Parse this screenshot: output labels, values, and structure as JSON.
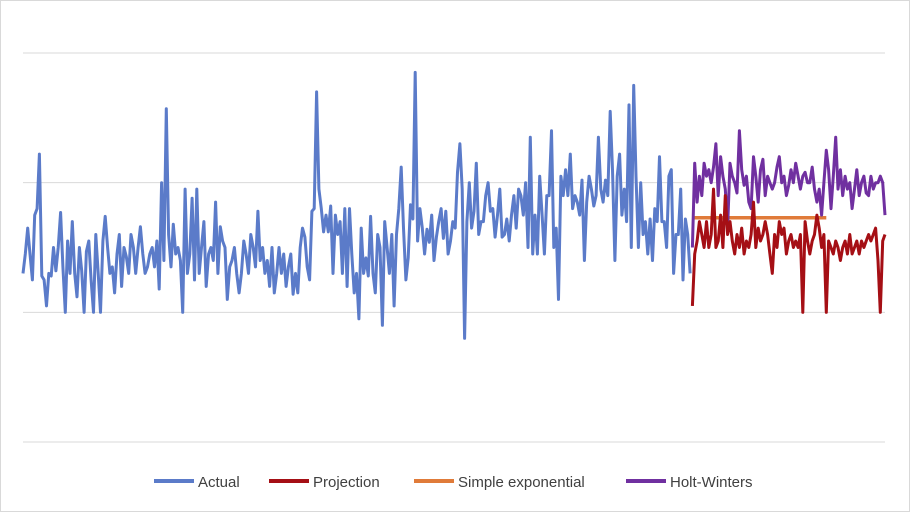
{
  "chart_data": {
    "type": "line",
    "title": "",
    "xlabel": "",
    "ylabel": "",
    "ylim": [
      -1,
      2
    ],
    "grid": true,
    "legend_position": "bottom",
    "series": [
      {
        "name": "Actual",
        "color": "#5b7bc9",
        "x_start": 0,
        "values": [
          0.3,
          0.45,
          0.65,
          0.45,
          0.25,
          0.75,
          0.8,
          1.22,
          0.28,
          0.25,
          0.05,
          0.3,
          0.28,
          0.5,
          0.32,
          0.5,
          0.77,
          0.35,
          0.0,
          0.55,
          0.3,
          0.7,
          0.3,
          0.12,
          0.5,
          0.32,
          0.0,
          0.47,
          0.55,
          0.25,
          0.0,
          0.6,
          0.3,
          0.0,
          0.55,
          0.74,
          0.5,
          0.3,
          0.35,
          0.15,
          0.45,
          0.6,
          0.2,
          0.5,
          0.43,
          0.3,
          0.6,
          0.5,
          0.3,
          0.5,
          0.66,
          0.45,
          0.3,
          0.35,
          0.45,
          0.5,
          0.35,
          0.55,
          0.18,
          1.0,
          0.4,
          1.57,
          0.6,
          0.35,
          0.68,
          0.45,
          0.5,
          0.4,
          0.0,
          0.95,
          0.3,
          0.45,
          0.88,
          0.25,
          0.95,
          0.3,
          0.5,
          0.7,
          0.2,
          0.45,
          0.5,
          0.4,
          0.85,
          0.3,
          0.66,
          0.55,
          0.5,
          0.1,
          0.35,
          0.4,
          0.5,
          0.3,
          0.15,
          0.3,
          0.55,
          0.45,
          0.3,
          0.6,
          0.5,
          0.35,
          0.78,
          0.4,
          0.5,
          0.3,
          0.4,
          0.2,
          0.5,
          0.15,
          0.3,
          0.5,
          0.3,
          0.45,
          0.2,
          0.35,
          0.45,
          0.14,
          0.3,
          0.15,
          0.5,
          0.65,
          0.58,
          0.35,
          0.25,
          0.78,
          0.8,
          1.7,
          0.95,
          0.8,
          0.62,
          0.75,
          0.62,
          0.82,
          0.3,
          0.75,
          0.6,
          0.7,
          0.3,
          0.8,
          0.2,
          0.8,
          0.45,
          0.15,
          0.3,
          -0.05,
          0.65,
          0.3,
          0.42,
          0.28,
          0.74,
          0.3,
          0.15,
          0.6,
          0.5,
          -0.1,
          0.7,
          0.5,
          0.3,
          0.6,
          0.05,
          0.6,
          0.8,
          1.12,
          0.65,
          0.25,
          0.42,
          0.83,
          0.72,
          1.85,
          0.55,
          0.8,
          0.65,
          0.45,
          0.64,
          0.54,
          0.75,
          0.4,
          0.58,
          0.7,
          0.8,
          0.57,
          0.78,
          0.45,
          0.55,
          0.7,
          0.65,
          1.08,
          1.3,
          0.95,
          -0.2,
          0.7,
          1.0,
          0.65,
          0.78,
          1.15,
          0.6,
          0.7,
          0.7,
          0.9,
          1.0,
          0.78,
          0.8,
          0.58,
          0.75,
          0.95,
          0.58,
          0.6,
          0.72,
          0.55,
          0.75,
          0.9,
          0.65,
          0.95,
          0.9,
          0.75,
          1.0,
          0.5,
          1.35,
          0.45,
          0.75,
          0.45,
          1.05,
          0.75,
          0.45,
          0.9,
          0.9,
          1.4,
          0.5,
          0.65,
          0.1,
          1.05,
          0.9,
          1.1,
          0.9,
          1.22,
          0.8,
          0.9,
          0.85,
          0.75,
          1.02,
          0.4,
          0.85,
          1.05,
          0.95,
          0.82,
          0.9,
          1.35,
          0.95,
          0.85,
          1.02,
          0.9,
          1.55,
          1.1,
          0.4,
          1.05,
          1.22,
          0.75,
          0.95,
          0.7,
          1.6,
          0.5,
          1.75,
          1.05,
          0.5,
          1.0,
          0.6,
          0.7,
          0.45,
          0.72,
          0.4,
          0.8,
          0.7,
          1.2,
          0.7,
          0.7,
          0.5,
          1.05,
          1.1,
          0.3,
          0.6,
          0.6,
          0.95,
          0.25,
          0.72,
          0.6,
          0.3
        ]
      },
      {
        "name": "Projection",
        "color": "#a50f15",
        "x_start": 285,
        "values": [
          0.05,
          0.45,
          0.55,
          0.7,
          0.6,
          0.5,
          0.7,
          0.5,
          0.6,
          0.95,
          0.5,
          0.55,
          0.75,
          0.5,
          0.9,
          0.6,
          0.7,
          0.55,
          0.45,
          0.6,
          0.5,
          0.65,
          0.45,
          0.55,
          0.5,
          0.6,
          0.85,
          0.5,
          0.65,
          0.55,
          0.6,
          0.7,
          0.6,
          0.45,
          0.3,
          0.6,
          0.5,
          0.7,
          0.6,
          0.65,
          0.45,
          0.55,
          0.6,
          0.5,
          0.55,
          0.5,
          0.6,
          0.0,
          0.7,
          0.55,
          0.45,
          0.55,
          0.6,
          0.75,
          0.65,
          0.5,
          0.6,
          0.0,
          0.55,
          0.5,
          0.45,
          0.55,
          0.5,
          0.4,
          0.5,
          0.55,
          0.45,
          0.6,
          0.45,
          0.5,
          0.55,
          0.45,
          0.55,
          0.5,
          0.55,
          0.6,
          0.55,
          0.6,
          0.65,
          0.4,
          0.0,
          0.55,
          0.6
        ]
      },
      {
        "name": "Simple exponential",
        "color": "#e07b39",
        "x_start": 285,
        "values": [
          0.73,
          0.73,
          0.73,
          0.73,
          0.73,
          0.73,
          0.73,
          0.73,
          0.73,
          0.73,
          0.73,
          0.73,
          0.73,
          0.73,
          0.73,
          0.73,
          0.73,
          0.73,
          0.73,
          0.73,
          0.73,
          0.73,
          0.73,
          0.73,
          0.73,
          0.73,
          0.73,
          0.73,
          0.73,
          0.73,
          0.73,
          0.73,
          0.73,
          0.73,
          0.73,
          0.73,
          0.73,
          0.73,
          0.73,
          0.73,
          0.73,
          0.73,
          0.73,
          0.73,
          0.73,
          0.73,
          0.73,
          0.73,
          0.73,
          0.73,
          0.73,
          0.73,
          0.73,
          0.73,
          0.73,
          0.73,
          0.73,
          0.73
        ]
      },
      {
        "name": "Holt-Winters",
        "color": "#7030a0",
        "x_start": 285,
        "values": [
          0.5,
          1.15,
          0.85,
          1.05,
          0.9,
          1.15,
          1.05,
          1.1,
          1.0,
          1.12,
          1.3,
          0.9,
          1.2,
          1.05,
          0.95,
          0.65,
          1.15,
          1.05,
          1.0,
          0.92,
          1.4,
          1.1,
          0.98,
          1.05,
          0.85,
          0.8,
          1.2,
          1.05,
          0.85,
          1.1,
          1.18,
          0.9,
          1.05,
          1.0,
          0.95,
          1.0,
          1.12,
          1.2,
          1.0,
          1.05,
          0.9,
          0.98,
          1.1,
          1.0,
          1.15,
          1.05,
          0.95,
          1.05,
          1.08,
          1.0,
          1.0,
          1.12,
          0.95,
          0.85,
          0.95,
          0.75,
          1.0,
          1.25,
          1.1,
          0.8,
          1.05,
          1.35,
          0.95,
          1.1,
          0.9,
          1.05,
          0.95,
          1.0,
          0.8,
          0.95,
          1.1,
          0.9,
          1.0,
          1.05,
          0.92,
          0.9,
          1.05,
          0.95,
          1.0,
          1.0,
          1.05,
          1.0,
          0.75
        ]
      }
    ]
  }
}
